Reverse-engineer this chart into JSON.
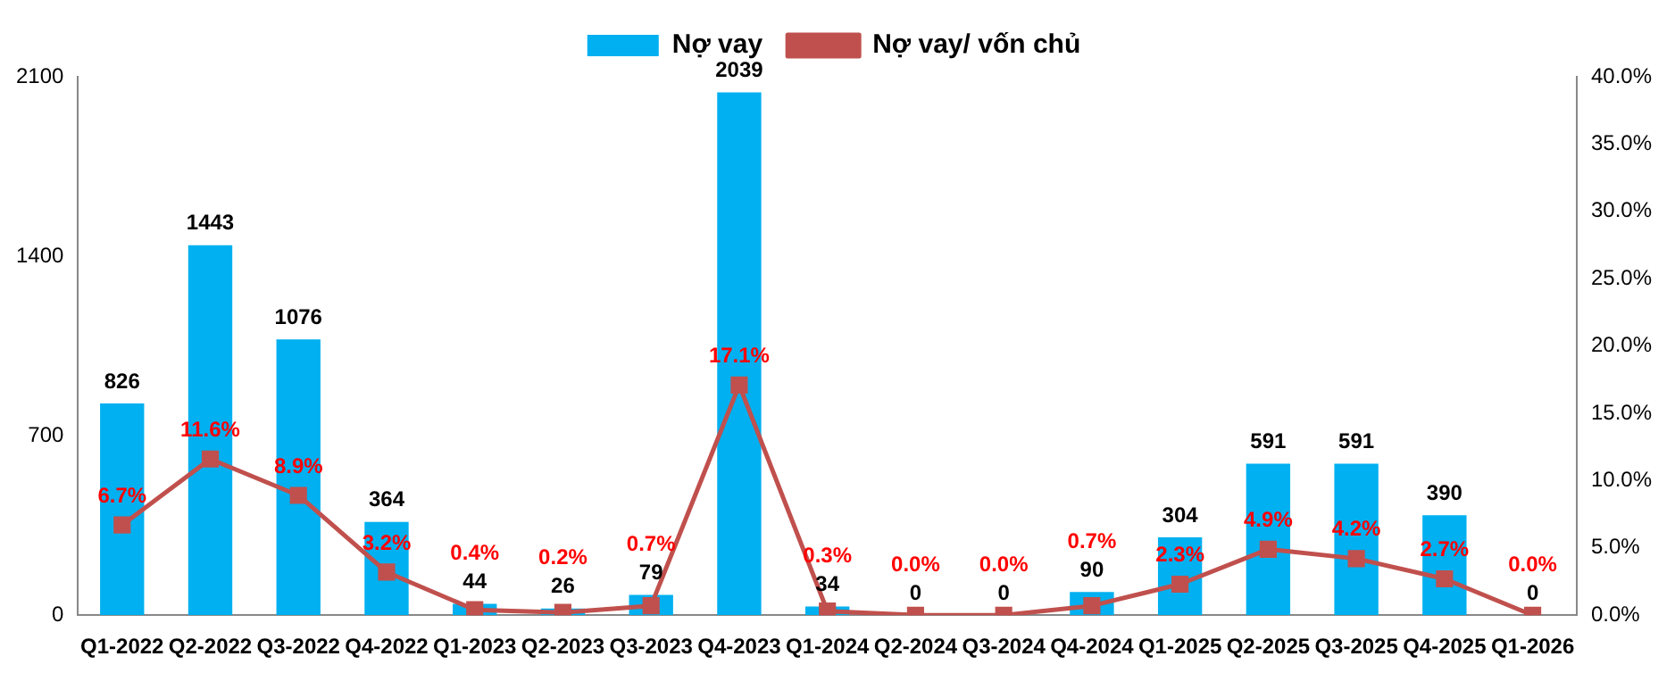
{
  "chart_data": {
    "type": "bar",
    "categories": [
      "Q1-2022",
      "Q2-2022",
      "Q3-2022",
      "Q4-2022",
      "Q1-2023",
      "Q2-2023",
      "Q3-2023",
      "Q4-2023",
      "Q1-2024",
      "Q2-2024",
      "Q3-2024",
      "Q4-2024",
      "Q1-2025",
      "Q2-2025",
      "Q3-2025",
      "Q4-2025",
      "Q1-2026"
    ],
    "series": [
      {
        "name": "Nợ vay",
        "color": "#00b0f0",
        "values": [
          826,
          1443,
          1076,
          364,
          44,
          26,
          79,
          2039,
          34,
          0,
          0,
          90,
          304,
          591,
          591,
          390,
          0
        ],
        "value_labels": [
          "826",
          "1443",
          "1076",
          "364",
          "44",
          "26",
          "79",
          "2039",
          "34",
          "0",
          "0",
          "90",
          "304",
          "591",
          "591",
          "390",
          "0"
        ]
      },
      {
        "name": "Nợ vay/ vốn chủ",
        "type": "line",
        "axis": "y2",
        "color": "#c0504d",
        "marker": "square",
        "values": [
          6.7,
          11.6,
          8.9,
          3.2,
          0.4,
          0.2,
          0.7,
          17.1,
          0.3,
          0,
          0,
          0.7,
          2.3,
          4.9,
          4.2,
          2.7,
          0
        ],
        "value_labels": [
          "6.7%",
          "11.6%",
          "8.9%",
          "3.2%",
          "0.4%",
          "0.2%",
          "0.7%",
          "17.1%",
          "0.3%",
          "0.0%",
          "0.0%",
          "0.7%",
          "2.3%",
          "4.9%",
          "4.2%",
          "2.7%",
          "0.0%"
        ]
      }
    ],
    "ylim": [
      0,
      2100
    ],
    "yticks": [
      0,
      700,
      1400,
      2100
    ],
    "y2lim": [
      0,
      40
    ],
    "y2ticks": [
      {
        "value": 0,
        "label": "0.0%"
      },
      {
        "value": 5,
        "label": "5.0%"
      },
      {
        "value": 10,
        "label": "10.0%"
      },
      {
        "value": 15,
        "label": "15.0%"
      },
      {
        "value": 20,
        "label": "20.0%"
      },
      {
        "value": 25,
        "label": "25.0%"
      },
      {
        "value": 30,
        "label": "30.0%"
      },
      {
        "value": 35,
        "label": "35.0%"
      },
      {
        "value": 40,
        "label": "40.0%"
      }
    ],
    "grid": false,
    "legend": "top"
  }
}
